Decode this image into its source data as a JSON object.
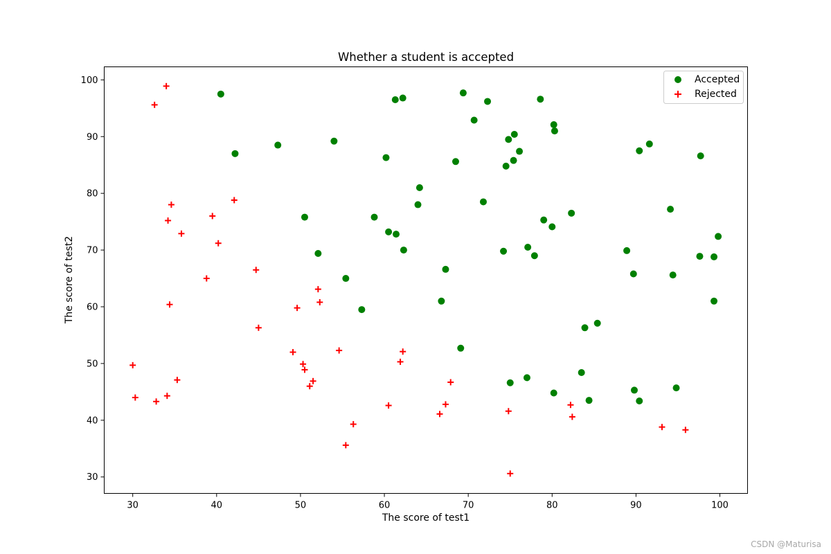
{
  "chart_data": {
    "type": "scatter",
    "title": "Whether a student is accepted",
    "xlabel": "The score of test1",
    "ylabel": "The score of test2",
    "xlim": [
      26.6,
      103.3
    ],
    "ylim": [
      27.1,
      102.3
    ],
    "xticks": [
      30,
      40,
      50,
      60,
      70,
      80,
      90,
      100
    ],
    "yticks": [
      30,
      40,
      50,
      60,
      70,
      80,
      90,
      100
    ],
    "grid": false,
    "legend_position": "top-right",
    "series": [
      {
        "name": "Accepted",
        "marker": "circle",
        "color": "#008000",
        "points": [
          [
            40.5,
            97.5
          ],
          [
            42.2,
            87.0
          ],
          [
            47.3,
            88.5
          ],
          [
            54.0,
            89.2
          ],
          [
            60.2,
            86.3
          ],
          [
            61.3,
            96.5
          ],
          [
            62.2,
            96.8
          ],
          [
            69.4,
            97.7
          ],
          [
            72.3,
            96.2
          ],
          [
            70.7,
            92.9
          ],
          [
            78.6,
            96.6
          ],
          [
            80.2,
            92.1
          ],
          [
            80.3,
            91.0
          ],
          [
            75.5,
            90.4
          ],
          [
            74.8,
            89.5
          ],
          [
            76.1,
            87.4
          ],
          [
            68.5,
            85.6
          ],
          [
            74.5,
            84.8
          ],
          [
            75.4,
            85.8
          ],
          [
            90.4,
            87.5
          ],
          [
            91.6,
            88.7
          ],
          [
            97.7,
            86.6
          ],
          [
            64.2,
            81.0
          ],
          [
            64.0,
            78.0
          ],
          [
            71.8,
            78.5
          ],
          [
            50.5,
            75.8
          ],
          [
            58.8,
            75.8
          ],
          [
            60.5,
            73.2
          ],
          [
            61.4,
            72.8
          ],
          [
            62.3,
            70.0
          ],
          [
            79.0,
            75.3
          ],
          [
            80.0,
            74.1
          ],
          [
            82.3,
            76.5
          ],
          [
            94.1,
            77.2
          ],
          [
            52.1,
            69.4
          ],
          [
            74.2,
            69.8
          ],
          [
            77.1,
            70.5
          ],
          [
            77.9,
            69.0
          ],
          [
            88.9,
            69.9
          ],
          [
            97.6,
            68.9
          ],
          [
            99.3,
            68.8
          ],
          [
            99.8,
            72.4
          ],
          [
            67.3,
            66.6
          ],
          [
            55.4,
            65.0
          ],
          [
            89.7,
            65.8
          ],
          [
            94.4,
            65.6
          ],
          [
            66.8,
            61.0
          ],
          [
            57.3,
            59.5
          ],
          [
            99.3,
            61.0
          ],
          [
            85.4,
            57.1
          ],
          [
            83.9,
            56.3
          ],
          [
            69.1,
            52.7
          ],
          [
            83.5,
            48.4
          ],
          [
            75.0,
            46.6
          ],
          [
            77.0,
            47.5
          ],
          [
            80.2,
            44.8
          ],
          [
            84.4,
            43.5
          ],
          [
            89.8,
            45.3
          ],
          [
            90.4,
            43.4
          ],
          [
            94.8,
            45.7
          ]
        ]
      },
      {
        "name": "Rejected",
        "marker": "plus",
        "color": "#ff0000",
        "points": [
          [
            34.0,
            98.9
          ],
          [
            32.6,
            95.6
          ],
          [
            42.1,
            78.8
          ],
          [
            34.6,
            78.0
          ],
          [
            34.2,
            75.2
          ],
          [
            39.5,
            76.0
          ],
          [
            35.8,
            72.9
          ],
          [
            40.2,
            71.2
          ],
          [
            44.7,
            66.5
          ],
          [
            38.8,
            65.0
          ],
          [
            52.1,
            63.1
          ],
          [
            52.3,
            60.8
          ],
          [
            49.6,
            59.8
          ],
          [
            34.4,
            60.4
          ],
          [
            45.0,
            56.3
          ],
          [
            49.1,
            52.0
          ],
          [
            54.6,
            52.3
          ],
          [
            62.2,
            52.1
          ],
          [
            61.9,
            50.3
          ],
          [
            50.3,
            49.9
          ],
          [
            50.5,
            48.9
          ],
          [
            51.5,
            46.9
          ],
          [
            51.1,
            46.0
          ],
          [
            30.0,
            49.7
          ],
          [
            35.3,
            47.1
          ],
          [
            30.3,
            44.0
          ],
          [
            32.8,
            43.3
          ],
          [
            34.1,
            44.3
          ],
          [
            60.5,
            42.6
          ],
          [
            56.3,
            39.3
          ],
          [
            55.4,
            35.6
          ],
          [
            67.3,
            42.8
          ],
          [
            66.6,
            41.1
          ],
          [
            67.9,
            46.7
          ],
          [
            74.8,
            41.6
          ],
          [
            82.2,
            42.7
          ],
          [
            82.4,
            40.6
          ],
          [
            93.1,
            38.8
          ],
          [
            95.9,
            38.3
          ],
          [
            75.0,
            30.6
          ]
        ]
      }
    ]
  },
  "watermark": "CSDN @Maturisa"
}
